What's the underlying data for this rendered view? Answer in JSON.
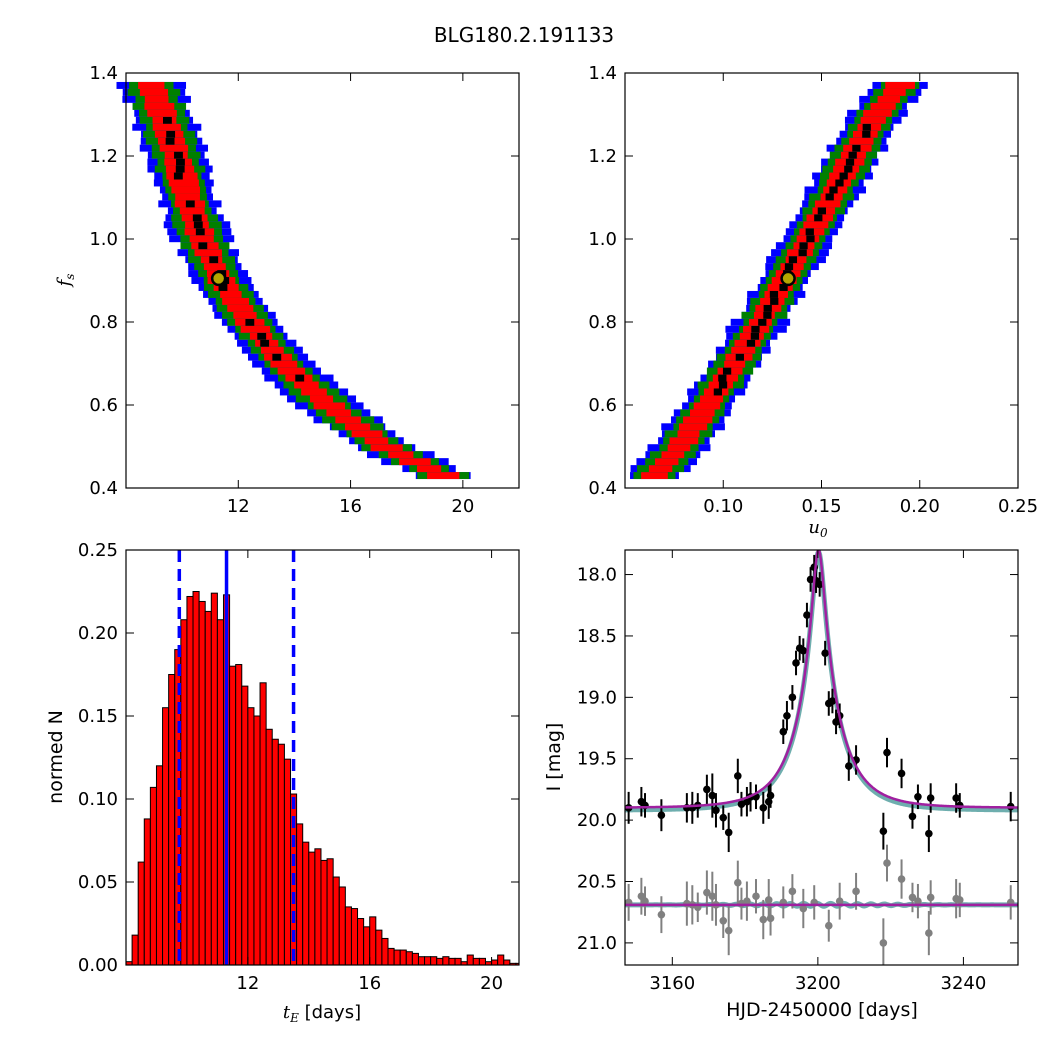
{
  "title": "BLG180.2.191133",
  "colors": {
    "sigma3": "#0000ff",
    "sigma2": "#008000",
    "sigma1": "#ff0000",
    "best_cells": "#000000",
    "best_marker_fill": "#b5a600",
    "hist_bar": "#ff0000",
    "hist_edge": "#000000",
    "median_line": "#0000ff",
    "model_line": "#a020a0",
    "band_line": "#4a9a9a",
    "source_points": "#000000",
    "baseline_points": "#808080"
  },
  "chart_data": [
    {
      "id": "tE_vs_fs",
      "type": "heatmap",
      "title": "",
      "xlabel": "",
      "ylabel_symbol": "f",
      "ylabel_sub": "s",
      "xlim": [
        8.0,
        22.0
      ],
      "ylim": [
        0.4,
        1.4
      ],
      "xticks": [
        "12",
        "16",
        "20"
      ],
      "yticks": [
        "0.4",
        "0.6",
        "0.8",
        "1.0",
        "1.2",
        "1.4"
      ],
      "contour_levels": [
        "1-sigma (red)",
        "2-sigma (green)",
        "3-sigma (blue)"
      ],
      "best_fit": {
        "tE": 11.3,
        "fs": 0.905
      },
      "ridge": {
        "fs": [
          0.43,
          0.5,
          0.6,
          0.7,
          0.8,
          0.9,
          1.0,
          1.1,
          1.2,
          1.3,
          1.37
        ],
        "tE": [
          19.3,
          17.2,
          15.2,
          13.6,
          12.4,
          11.4,
          10.7,
          10.2,
          9.8,
          9.3,
          8.9
        ]
      },
      "half_width_tE": {
        "sigma1": 0.45,
        "sigma2": 0.75,
        "sigma3": 1.0
      }
    },
    {
      "id": "u0_vs_fs",
      "type": "heatmap",
      "title": "",
      "xlabel_symbol": "u",
      "xlabel_sub": "0",
      "ylabel": "",
      "xlim": [
        0.05,
        0.25
      ],
      "ylim": [
        0.4,
        1.4
      ],
      "xticks": [
        "0.10",
        "0.15",
        "0.20",
        "0.25"
      ],
      "yticks": [
        "0.4",
        "0.6",
        "0.8",
        "1.0",
        "1.2",
        "1.4"
      ],
      "contour_levels": [
        "1-sigma (red)",
        "2-sigma (green)",
        "3-sigma (blue)"
      ],
      "best_fit": {
        "u0": 0.133,
        "fs": 0.905
      },
      "ridge": {
        "fs": [
          0.43,
          0.5,
          0.6,
          0.7,
          0.8,
          0.9,
          1.0,
          1.1,
          1.2,
          1.3,
          1.37
        ],
        "u0": [
          0.065,
          0.078,
          0.092,
          0.106,
          0.119,
          0.131,
          0.143,
          0.155,
          0.166,
          0.178,
          0.19
        ]
      },
      "half_width_u0": {
        "sigma1": 0.006,
        "sigma2": 0.01,
        "sigma3": 0.013
      }
    },
    {
      "id": "tE_histogram",
      "type": "bar",
      "title": "",
      "xlabel_symbol": "t",
      "xlabel_sub": "E",
      "xlabel_rest": " [days]",
      "ylabel": "normed N",
      "xlim": [
        8.0,
        20.9
      ],
      "ylim": [
        0.0,
        0.25
      ],
      "xticks": [
        "12",
        "16",
        "20"
      ],
      "yticks": [
        "0.00",
        "0.05",
        "0.10",
        "0.15",
        "0.20",
        "0.25"
      ],
      "bin_start": 8.0,
      "bin_width": 0.2,
      "values": [
        0.002,
        0.018,
        0.062,
        0.088,
        0.107,
        0.12,
        0.155,
        0.175,
        0.19,
        0.208,
        0.222,
        0.225,
        0.219,
        0.213,
        0.224,
        0.208,
        0.223,
        0.18,
        0.181,
        0.168,
        0.155,
        0.15,
        0.17,
        0.142,
        0.136,
        0.133,
        0.124,
        0.103,
        0.085,
        0.074,
        0.068,
        0.07,
        0.063,
        0.064,
        0.053,
        0.047,
        0.035,
        0.034,
        0.028,
        0.023,
        0.029,
        0.021,
        0.016,
        0.01,
        0.009,
        0.009,
        0.008,
        0.007,
        0.005,
        0.005,
        0.005,
        0.004,
        0.005,
        0.004,
        0.004,
        0.002,
        0.006,
        0.004,
        0.004,
        0.002,
        0.003,
        0.006,
        0.003,
        0.001,
        0.001
      ],
      "median": 11.3,
      "lower": 9.75,
      "upper": 13.5
    },
    {
      "id": "light_curve",
      "type": "scatter",
      "title": "",
      "xlabel": "HJD-2450000 [days]",
      "ylabel": "I [mag]",
      "xlim": [
        3147.0,
        3255.0
      ],
      "ylim": [
        21.18,
        17.8
      ],
      "xticks": [
        "3160",
        "3200",
        "3240"
      ],
      "yticks": [
        "18.0",
        "18.5",
        "19.0",
        "19.5",
        "20.0",
        "20.5",
        "21.0"
      ],
      "model": {
        "t0": 3200.2,
        "tE": 11.3,
        "u0": 0.133,
        "fs": 0.905,
        "baseline_mag": 19.9,
        "source_baseline_mag": 20.69
      },
      "source_points": {
        "t": [
          3148.0,
          3151.5,
          3152.5,
          3157.0,
          3164.0,
          3165.5,
          3167.0,
          3169.5,
          3171.0,
          3172.0,
          3174.0,
          3175.5,
          3178.0,
          3179.0,
          3180.5,
          3181.5,
          3183.0,
          3185.0,
          3186.5,
          3187.0,
          3190.5,
          3191.5,
          3193.0,
          3194.0,
          3195.0,
          3196.0,
          3197.0,
          3198.0,
          3199.0,
          3199.5,
          3200.5,
          3202.0,
          3203.0,
          3204.0,
          3205.0,
          3206.0,
          3208.5,
          3210.5,
          3218.0,
          3219.0,
          3223.0,
          3226.0,
          3227.5,
          3230.5,
          3231.0,
          3238.0,
          3239.0,
          3253.0
        ],
        "y": [
          19.9,
          19.85,
          19.88,
          19.96,
          19.9,
          19.9,
          19.88,
          19.75,
          19.8,
          19.92,
          19.98,
          20.1,
          19.64,
          19.87,
          19.85,
          19.81,
          19.81,
          19.9,
          19.85,
          19.8,
          19.28,
          19.15,
          19.0,
          18.72,
          18.6,
          18.62,
          18.33,
          18.04,
          17.94,
          18.05,
          18.08,
          18.64,
          19.05,
          19.03,
          19.2,
          19.15,
          19.56,
          19.51,
          20.09,
          19.45,
          19.62,
          19.97,
          19.81,
          20.11,
          19.82,
          19.82,
          19.88,
          19.89
        ],
        "err": [
          0.13,
          0.12,
          0.1,
          0.13,
          0.12,
          0.13,
          0.1,
          0.12,
          0.18,
          0.14,
          0.1,
          0.16,
          0.14,
          0.1,
          0.12,
          0.12,
          0.1,
          0.13,
          0.14,
          0.1,
          0.1,
          0.12,
          0.1,
          0.1,
          0.1,
          0.1,
          0.1,
          0.1,
          0.1,
          0.1,
          0.1,
          0.1,
          0.1,
          0.1,
          0.1,
          0.1,
          0.12,
          0.12,
          0.15,
          0.12,
          0.12,
          0.1,
          0.1,
          0.15,
          0.12,
          0.12,
          0.1,
          0.12
        ]
      },
      "baseline_points": {
        "t": [
          3148.0,
          3151.5,
          3152.5,
          3157.0,
          3164.0,
          3165.5,
          3167.0,
          3169.5,
          3171.0,
          3172.0,
          3174.0,
          3175.5,
          3178.0,
          3179.0,
          3180.5,
          3183.0,
          3185.0,
          3186.5,
          3187.0,
          3190.5,
          3193.0,
          3196.0,
          3199.0,
          3203.0,
          3206.0,
          3210.5,
          3218.0,
          3219.0,
          3223.0,
          3226.0,
          3227.5,
          3230.5,
          3231.0,
          3238.0,
          3239.0,
          3253.0
        ],
        "y": [
          20.67,
          20.62,
          20.66,
          20.77,
          20.68,
          20.69,
          20.71,
          20.59,
          20.62,
          20.69,
          20.82,
          20.9,
          20.51,
          20.68,
          20.66,
          20.62,
          20.81,
          20.65,
          20.8,
          20.67,
          20.58,
          20.72,
          20.67,
          20.86,
          20.66,
          20.58,
          21.0,
          20.35,
          20.48,
          20.63,
          20.66,
          20.92,
          20.63,
          20.64,
          20.65,
          20.67
        ],
        "err": [
          0.15,
          0.15,
          0.12,
          0.15,
          0.18,
          0.16,
          0.12,
          0.18,
          0.2,
          0.17,
          0.14,
          0.2,
          0.18,
          0.13,
          0.16,
          0.14,
          0.16,
          0.17,
          0.14,
          0.13,
          0.14,
          0.16,
          0.14,
          0.13,
          0.15,
          0.15,
          0.2,
          0.15,
          0.16,
          0.12,
          0.14,
          0.18,
          0.14,
          0.16,
          0.14,
          0.14
        ]
      }
    }
  ]
}
